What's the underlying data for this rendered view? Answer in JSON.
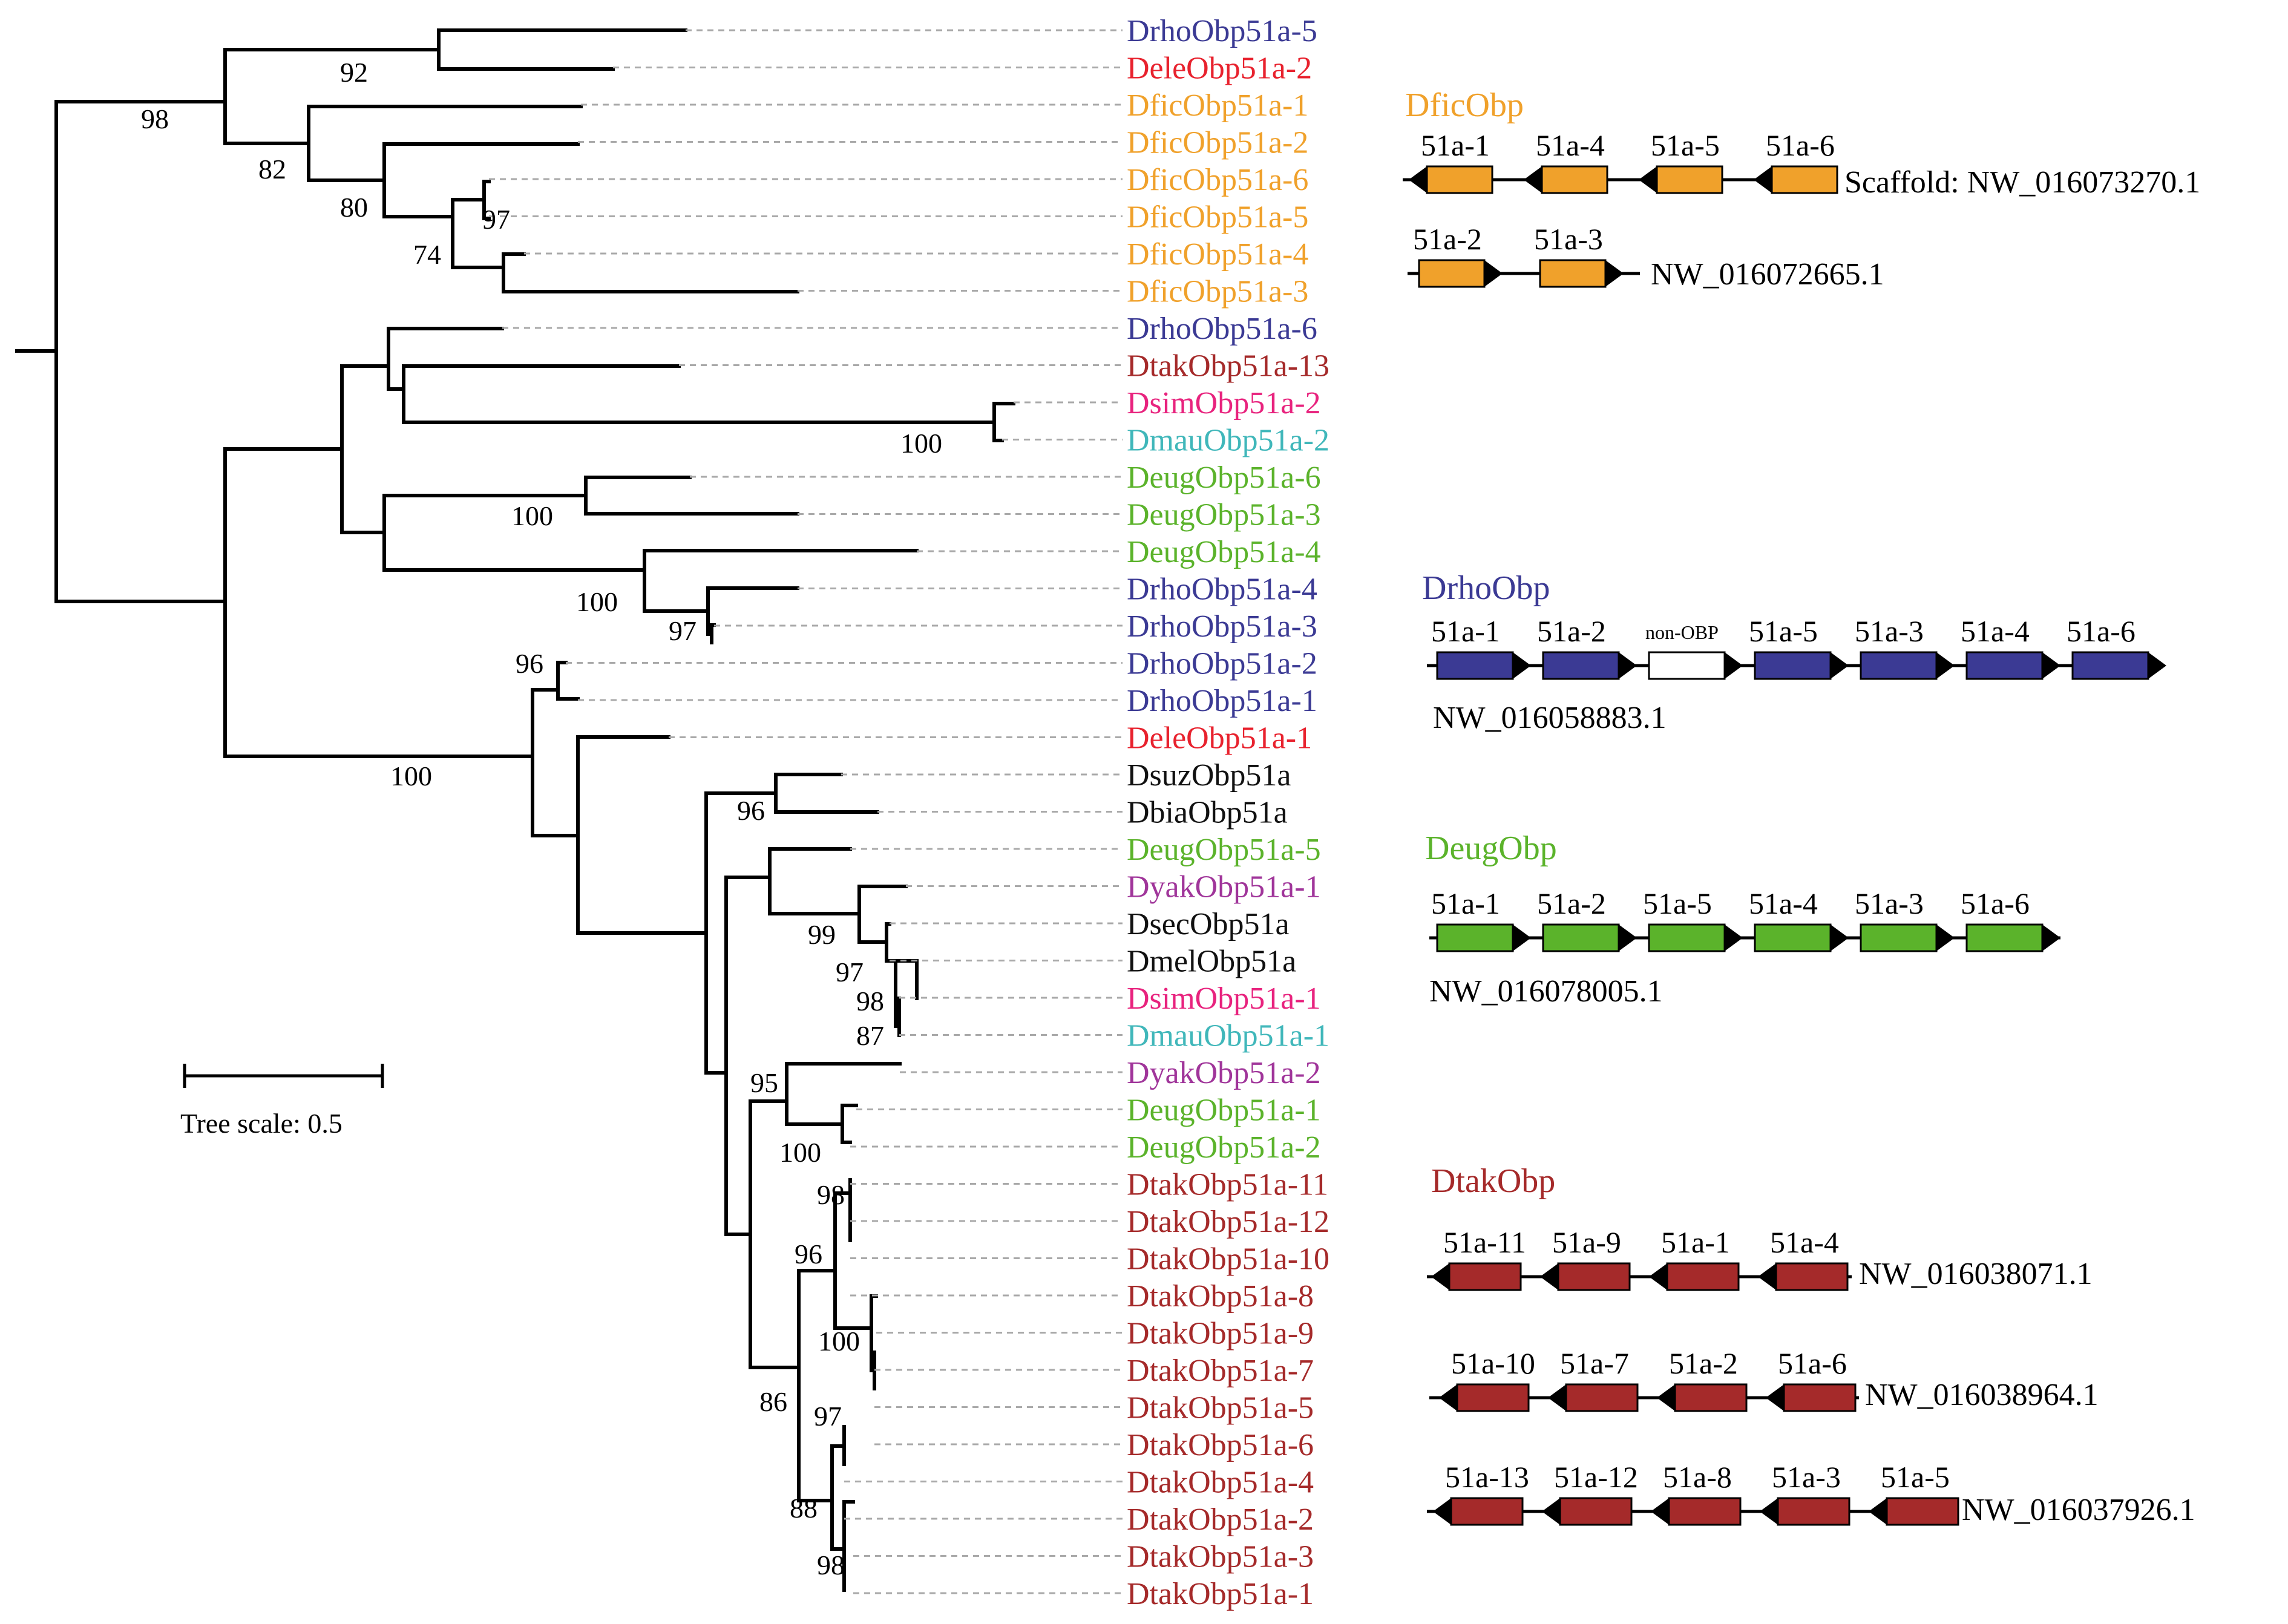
{
  "colors": {
    "Drho": "#3b3a94",
    "Dele": "#e8222e",
    "Dfic": "#f0a12b",
    "Dtak": "#a52a2a",
    "Dsim": "#e8237e",
    "Dmau": "#40b7ba",
    "Deug": "#5bb32b",
    "Dyak": "#a0359a",
    "black": "#111111",
    "white": "#ffffff"
  },
  "leaves": [
    {
      "name": "DrhoObp51a-5",
      "color": "Drho"
    },
    {
      "name": "DeleObp51a-2",
      "color": "Dele"
    },
    {
      "name": "DficObp51a-1",
      "color": "Dfic"
    },
    {
      "name": "DficObp51a-2",
      "color": "Dfic"
    },
    {
      "name": "DficObp51a-6",
      "color": "Dfic"
    },
    {
      "name": "DficObp51a-5",
      "color": "Dfic"
    },
    {
      "name": "DficObp51a-4",
      "color": "Dfic"
    },
    {
      "name": "DficObp51a-3",
      "color": "Dfic"
    },
    {
      "name": "DrhoObp51a-6",
      "color": "Drho"
    },
    {
      "name": "DtakObp51a-13",
      "color": "Dtak"
    },
    {
      "name": "DsimObp51a-2",
      "color": "Dsim"
    },
    {
      "name": "DmauObp51a-2",
      "color": "Dmau"
    },
    {
      "name": "DeugObp51a-6",
      "color": "Deug"
    },
    {
      "name": "DeugObp51a-3",
      "color": "Deug"
    },
    {
      "name": "DeugObp51a-4",
      "color": "Deug"
    },
    {
      "name": "DrhoObp51a-4",
      "color": "Drho"
    },
    {
      "name": "DrhoObp51a-3",
      "color": "Drho"
    },
    {
      "name": "DrhoObp51a-2",
      "color": "Drho"
    },
    {
      "name": "DrhoObp51a-1",
      "color": "Drho"
    },
    {
      "name": "DeleObp51a-1",
      "color": "Dele"
    },
    {
      "name": "DsuzObp51a",
      "color": "black"
    },
    {
      "name": "DbiaObp51a",
      "color": "black"
    },
    {
      "name": "DeugObp51a-5",
      "color": "Deug"
    },
    {
      "name": "DyakObp51a-1",
      "color": "Dyak"
    },
    {
      "name": "DsecObp51a",
      "color": "black"
    },
    {
      "name": "DmelObp51a",
      "color": "black"
    },
    {
      "name": "DsimObp51a-1",
      "color": "Dsim"
    },
    {
      "name": "DmauObp51a-1",
      "color": "Dmau"
    },
    {
      "name": "DyakObp51a-2",
      "color": "Dyak"
    },
    {
      "name": "DeugObp51a-1",
      "color": "Deug"
    },
    {
      "name": "DeugObp51a-2",
      "color": "Deug"
    },
    {
      "name": "DtakObp51a-11",
      "color": "Dtak"
    },
    {
      "name": "DtakObp51a-12",
      "color": "Dtak"
    },
    {
      "name": "DtakObp51a-10",
      "color": "Dtak"
    },
    {
      "name": "DtakObp51a-8",
      "color": "Dtak"
    },
    {
      "name": "DtakObp51a-9",
      "color": "Dtak"
    },
    {
      "name": "DtakObp51a-7",
      "color": "Dtak"
    },
    {
      "name": "DtakObp51a-5",
      "color": "Dtak"
    },
    {
      "name": "DtakObp51a-6",
      "color": "Dtak"
    },
    {
      "name": "DtakObp51a-4",
      "color": "Dtak"
    },
    {
      "name": "DtakObp51a-2",
      "color": "Dtak"
    },
    {
      "name": "DtakObp51a-3",
      "color": "Dtak"
    },
    {
      "name": "DtakObp51a-1",
      "color": "Dtak"
    }
  ],
  "bootstrap": [
    "98",
    "92",
    "82",
    "80",
    "97",
    "74",
    "100",
    "100",
    "100",
    "97",
    "96",
    "100",
    "96",
    "99",
    "97",
    "98",
    "87",
    "95",
    "100",
    "98",
    "96",
    "100",
    "86",
    "97",
    "88",
    "98"
  ],
  "scale_label": "Tree scale: 0.5",
  "gene_clusters": {
    "dfic": {
      "title": "DficObp",
      "color": "Dfic",
      "rows": [
        {
          "labels": [
            "51a-1",
            "51a-4",
            "51a-5",
            "51a-6"
          ],
          "accession": "Scaffold: NW_016073270.1"
        },
        {
          "labels": [
            "51a-2",
            "51a-3"
          ],
          "accession": "NW_016072665.1"
        }
      ]
    },
    "drho": {
      "title": "DrhoObp",
      "color": "Drho",
      "rows": [
        {
          "labels": [
            "51a-1",
            "51a-2",
            "non-OBP",
            "51a-5",
            "51a-3",
            "51a-4",
            "51a-6"
          ],
          "accession": "NW_016058883.1"
        }
      ]
    },
    "deug": {
      "title": "DeugObp",
      "color": "Deug",
      "rows": [
        {
          "labels": [
            "51a-1",
            "51a-2",
            "51a-5",
            "51a-4",
            "51a-3",
            "51a-6"
          ],
          "accession": "NW_016078005.1"
        }
      ]
    },
    "dtak": {
      "title": "DtakObp",
      "color": "Dtak",
      "rows": [
        {
          "labels": [
            "51a-11",
            "51a-9",
            "51a-1",
            "51a-4"
          ],
          "accession": "NW_016038071.1"
        },
        {
          "labels": [
            "51a-10",
            "51a-7",
            "51a-2",
            "51a-6"
          ],
          "accession": "NW_016038964.1"
        },
        {
          "labels": [
            "51a-13",
            "51a-12",
            "51a-8",
            "51a-3",
            "51a-5"
          ],
          "accession": "NW_016037926.1"
        }
      ]
    }
  }
}
